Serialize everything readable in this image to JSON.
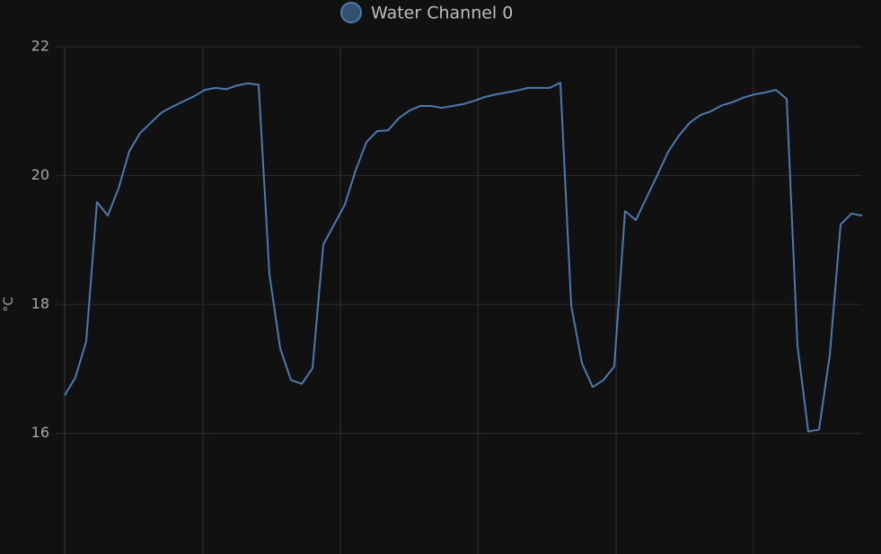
{
  "chart_data": {
    "type": "line",
    "y_label": "°C",
    "ylim": [
      14.13,
      22
    ],
    "yticks": [
      16,
      18,
      20,
      22
    ],
    "grid": true,
    "series": [
      {
        "name": "Water Channel 0",
        "color": "#4a7ab0",
        "values": [
          16.59,
          16.87,
          17.43,
          19.59,
          19.38,
          19.8,
          20.38,
          20.66,
          20.82,
          20.98,
          21.07,
          21.15,
          21.23,
          21.33,
          21.36,
          21.34,
          21.4,
          21.43,
          21.41,
          18.47,
          17.32,
          16.83,
          16.77,
          17.01,
          18.93,
          19.24,
          19.55,
          20.08,
          20.52,
          20.69,
          20.7,
          20.89,
          21.01,
          21.08,
          21.08,
          21.05,
          21.08,
          21.11,
          21.16,
          21.22,
          21.26,
          21.29,
          21.32,
          21.36,
          21.36,
          21.36,
          21.44,
          17.99,
          17.09,
          16.72,
          16.83,
          17.04,
          19.45,
          19.31,
          19.66,
          20.01,
          20.37,
          20.62,
          20.82,
          20.94,
          21.0,
          21.09,
          21.14,
          21.21,
          21.26,
          21.29,
          21.33,
          21.19,
          17.36,
          16.03,
          16.06,
          17.22,
          19.24,
          19.41,
          19.38
        ]
      }
    ]
  }
}
